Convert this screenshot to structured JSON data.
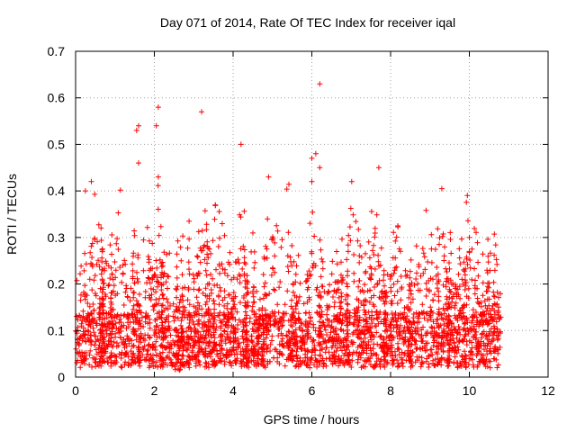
{
  "chart_data": {
    "type": "scatter",
    "title": "Day 071 of 2014, Rate Of TEC Index for receiver iqal",
    "xlabel": "GPS time / hours",
    "ylabel": "ROTI / TECUs",
    "xlim": [
      0,
      12
    ],
    "ylim": [
      0,
      0.7
    ],
    "xticks": [
      0,
      2,
      4,
      6,
      8,
      10,
      12
    ],
    "yticks": [
      0,
      0.1,
      0.2,
      0.3,
      0.4,
      0.5,
      0.6,
      0.7
    ],
    "xtick_labels": [
      "0",
      "2",
      "4",
      "6",
      "8",
      "10",
      "12"
    ],
    "ytick_labels": [
      "0",
      "0.1",
      "0.2",
      "0.3",
      "0.4",
      "0.5",
      "0.6",
      "0.7"
    ],
    "grid": true,
    "marker": "+",
    "color": "#ff0000",
    "data_x_range": [
      0,
      10.8
    ],
    "notable_points": [
      {
        "x": 6.2,
        "y": 0.63
      },
      {
        "x": 2.1,
        "y": 0.58
      },
      {
        "x": 3.2,
        "y": 0.57
      },
      {
        "x": 1.6,
        "y": 0.54
      },
      {
        "x": 2.05,
        "y": 0.54
      },
      {
        "x": 1.55,
        "y": 0.53
      },
      {
        "x": 4.2,
        "y": 0.5
      },
      {
        "x": 6.1,
        "y": 0.48
      },
      {
        "x": 6.0,
        "y": 0.47
      },
      {
        "x": 1.6,
        "y": 0.46
      },
      {
        "x": 6.2,
        "y": 0.45
      },
      {
        "x": 7.7,
        "y": 0.45
      },
      {
        "x": 4.9,
        "y": 0.43
      },
      {
        "x": 2.1,
        "y": 0.43
      },
      {
        "x": 0.4,
        "y": 0.42
      },
      {
        "x": 6.0,
        "y": 0.42
      },
      {
        "x": 0.25,
        "y": 0.4
      },
      {
        "x": 9.95,
        "y": 0.39
      },
      {
        "x": 10.0,
        "y": 0.3
      },
      {
        "x": 10.0,
        "y": 0.27
      }
    ],
    "bulk_points": {
      "description": "dense cloud of several thousand measurements",
      "typical_y_range": [
        0.01,
        0.3
      ],
      "seed": 71
    }
  }
}
